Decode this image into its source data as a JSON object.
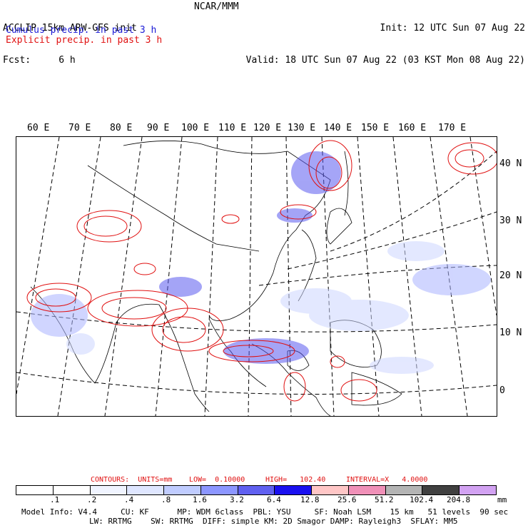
{
  "header": {
    "title_left": "ACCLIP 15km ARW-GFS init",
    "fcst": "Fcst:     6 h",
    "center": "NCAR/MMM",
    "init": "Init: 12 UTC Sun 07 Aug 22",
    "valid": "Valid: 18 UTC Sun 07 Aug 22 (03 KST Mon 08 Aug 22)"
  },
  "legend": {
    "cumulus": "Cumulus precip. in past 3 h",
    "explicit": "Explicit precip. in past 3 h",
    "cumulus_color": "#1b1bd6",
    "explicit_color": "#e01010"
  },
  "map": {
    "lon_labels": [
      "60 E",
      "70 E",
      "80 E",
      "90 E",
      "100 E",
      "110 E",
      "120 E",
      "130 E",
      "140 E",
      "150 E",
      "160 E",
      "170 E"
    ],
    "lat_labels": [
      "40 N",
      "30 N",
      "20 N",
      "10 N",
      "0"
    ]
  },
  "contour_info": {
    "contours": "CONTOURS:  UNITS=mm",
    "low": "LOW=  0.10000",
    "high": "HIGH=   102.40",
    "interval": "INTERVAL=X   4.0000"
  },
  "colorbar": {
    "ticks": [
      ".1",
      ".2",
      ".4",
      ".8",
      "1.6",
      "3.2",
      "6.4",
      "12.8",
      "25.6",
      "51.2",
      "102.4",
      "204.8"
    ],
    "unit": "mm",
    "colors": [
      "#ffffff",
      "#ffffff",
      "#f0f4ff",
      "#dfe6ff",
      "#c0ccff",
      "#8c96ff",
      "#6060f0",
      "#1a10f0",
      "#ffc6c6",
      "#f090b8",
      "#b4b4b4",
      "#404040",
      "#d2a2f2"
    ]
  },
  "model_info": {
    "line1": "Model Info: V4.4     CU: KF      MP: WDM 6class  PBL: YSU     SF: Noah LSM    15 km   51 levels  90 sec",
    "line2": "LW: RRTMG    SW: RRTMG  DIFF: simple KM: 2D Smagor DAMP: Rayleigh3  SFLAY: MM5"
  }
}
